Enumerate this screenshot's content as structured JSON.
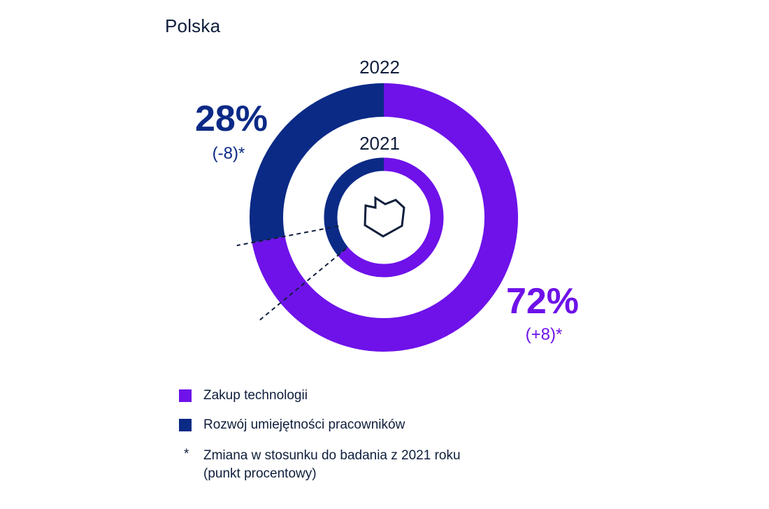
{
  "header": {
    "title": "Polska"
  },
  "colors": {
    "tech": "#6e12e9",
    "skills": "#0b2a86",
    "text": "#0f1e3c",
    "center_icon": "#0f1e3c"
  },
  "chart_data": {
    "type": "donut",
    "series": [
      {
        "name": "2022",
        "ring": "outer",
        "values": [
          72,
          28
        ],
        "labels": [
          "72%",
          "28%"
        ],
        "changes": [
          "(+8)*",
          "(-8)*"
        ]
      },
      {
        "name": "2021",
        "ring": "inner",
        "values": [
          64,
          36
        ]
      }
    ],
    "categories": [
      "Zakup technologii",
      "Rozwój umiejętności pracowników"
    ],
    "center_icon": "poland-map-icon"
  },
  "legend": {
    "items": [
      {
        "label": "Zakup technologii",
        "color_key": "tech"
      },
      {
        "label": "Rozwój umiejętności pracowników",
        "color_key": "skills"
      }
    ],
    "note": {
      "symbol": "*",
      "line1": "Zmiana w stosunku do badania z 2021 roku",
      "line2": "(punkt procentowy)"
    }
  }
}
